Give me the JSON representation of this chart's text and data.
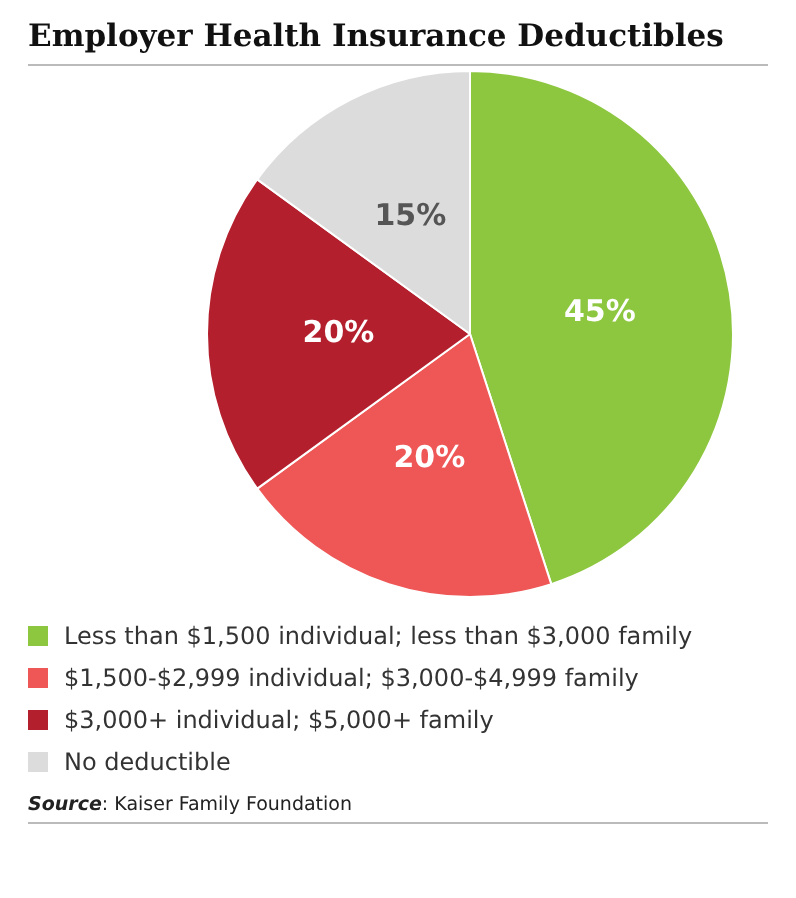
{
  "chart_data": {
    "type": "pie",
    "title": "Employer Health Insurance Deductibles",
    "categories": [
      "Less than $1,500 individual; less than $3,000 family",
      "$1,500-$2,999 individual; $3,000-$4,999 family",
      "$3,000+ individual; $5,000+ family",
      "No deductible"
    ],
    "values": [
      45,
      20,
      20,
      15
    ],
    "colors": [
      "#8dc63f",
      "#ef5656",
      "#b31f2c",
      "#dcdcdc"
    ],
    "value_labels": [
      "45%",
      "20%",
      "20%",
      "15%"
    ],
    "legend": "bottom",
    "annotations": [
      "Source: Kaiser Family Foundation"
    ]
  }
}
